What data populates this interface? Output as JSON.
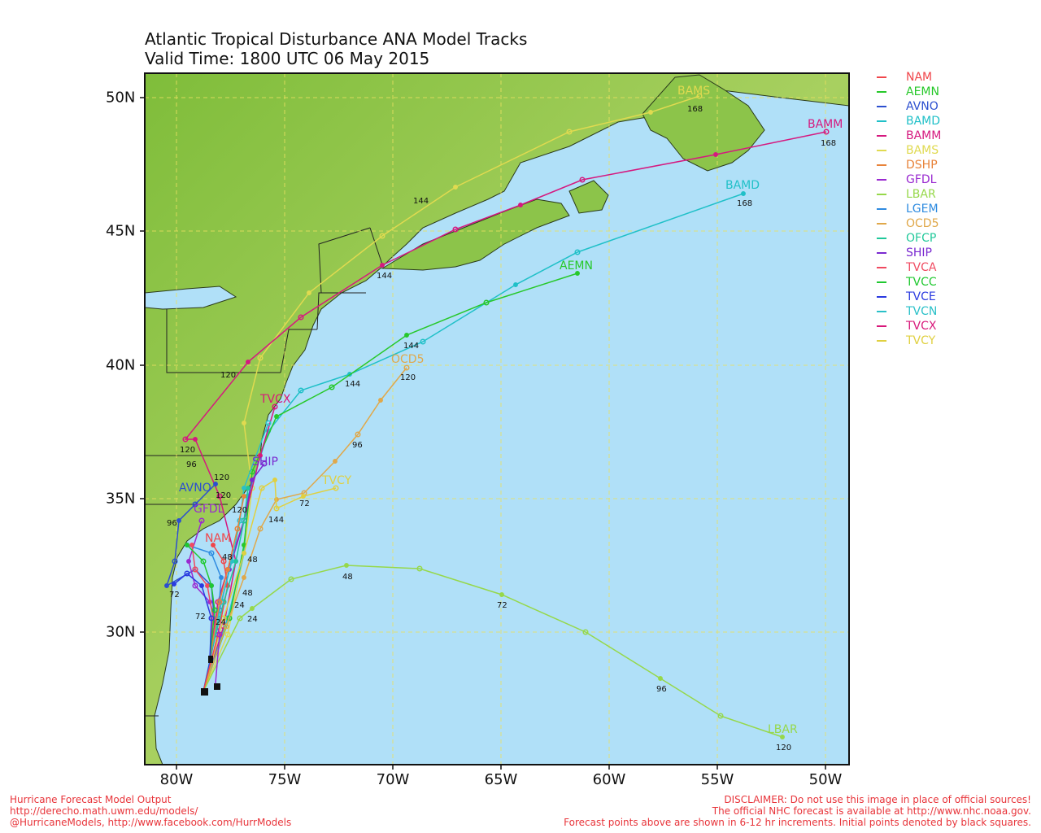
{
  "title_line1": "Atlantic Tropical Disturbance ANA Model Tracks",
  "title_line2": "Valid Time: 1800 UTC 06 May 2015",
  "lon_labels": [
    "80W",
    "75W",
    "70W",
    "65W",
    "60W",
    "55W",
    "50W"
  ],
  "lat_labels": [
    "50N",
    "45N",
    "40N",
    "35N",
    "30N"
  ],
  "legend": [
    {
      "name": "NAM",
      "color": "#f0464b"
    },
    {
      "name": "AEMN",
      "color": "#27c82a"
    },
    {
      "name": "AVNO",
      "color": "#2c4fcf"
    },
    {
      "name": "BAMD",
      "color": "#20c0c8"
    },
    {
      "name": "BAMM",
      "color": "#d5197f"
    },
    {
      "name": "BAMS",
      "color": "#e0da50"
    },
    {
      "name": "DSHP",
      "color": "#e8833a"
    },
    {
      "name": "GFDL",
      "color": "#9a2ad0"
    },
    {
      "name": "LBAR",
      "color": "#96d84a"
    },
    {
      "name": "LGEM",
      "color": "#2f8be0"
    },
    {
      "name": "OCD5",
      "color": "#e0a84a"
    },
    {
      "name": "OFCP",
      "color": "#20c89a"
    },
    {
      "name": "SHIP",
      "color": "#7a2ad0"
    },
    {
      "name": "TVCA",
      "color": "#f04a60"
    },
    {
      "name": "TVCC",
      "color": "#20c830"
    },
    {
      "name": "TVCE",
      "color": "#2a3ae0"
    },
    {
      "name": "TVCN",
      "color": "#2ac0c8"
    },
    {
      "name": "TVCX",
      "color": "#d8187a"
    },
    {
      "name": "TVCY",
      "color": "#e0d040"
    }
  ],
  "track_labels": {
    "bams": "BAMS",
    "bamm": "BAMM",
    "bamd": "BAMD",
    "aemn": "AEMN",
    "ocd5": "OCD5",
    "tvcy": "TVCY",
    "avno": "AVNO",
    "lbar": "LBAR",
    "nam": "NAM",
    "gfdl": "GFDL",
    "tvcx": "TVCX",
    "ship": "SHIP"
  },
  "hour_labels": {
    "h168": "168",
    "h144": "144",
    "h120": "120",
    "h96": "96",
    "h72": "72",
    "h48": "48",
    "h24": "24"
  },
  "footer_left": [
    "Hurricane Forecast Model Output",
    "http://derecho.math.uwm.edu/models/",
    "@HurricaneModels, http://www.facebook.com/HurrModels"
  ],
  "footer_right": [
    "DISCLAIMER: Do not use this image in place of official sources!",
    "The official NHC forecast is available at http://www.nhc.noaa.gov.",
    "Forecast points above are shown in 6-12 hr increments. Initial points denoted by black squares."
  ]
}
